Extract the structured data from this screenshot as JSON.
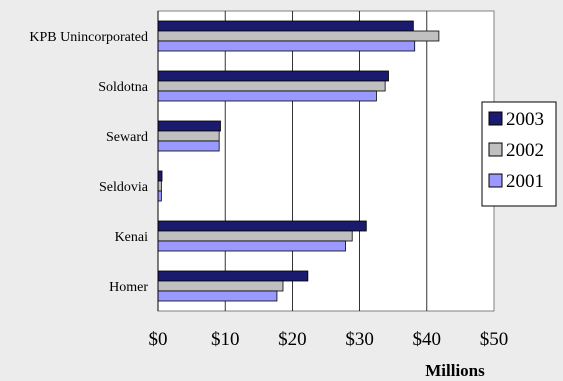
{
  "chart_data": {
    "type": "bar",
    "orientation": "horizontal",
    "categories": [
      "KPB Unincorporated",
      "Soldotna",
      "Seward",
      "Seldovia",
      "Kenai",
      "Homer"
    ],
    "series": [
      {
        "name": "2003",
        "color": "#1a1a6e",
        "values": [
          38.0,
          34.3,
          9.3,
          0.6,
          31.0,
          22.3
        ]
      },
      {
        "name": "2002",
        "color": "#c0c0c0",
        "values": [
          41.8,
          33.8,
          9.1,
          0.5,
          28.9,
          18.6
        ]
      },
      {
        "name": "2001",
        "color": "#9999ff",
        "values": [
          38.2,
          32.5,
          9.1,
          0.5,
          27.9,
          17.7
        ]
      }
    ],
    "x_ticks": [
      "$0",
      "$10",
      "$20",
      "$30",
      "$40",
      "$50"
    ],
    "xlim": [
      0,
      50
    ],
    "xlabel": "Millions",
    "ylabel": "",
    "title": "",
    "grid": "vertical",
    "legend_position": "right"
  }
}
